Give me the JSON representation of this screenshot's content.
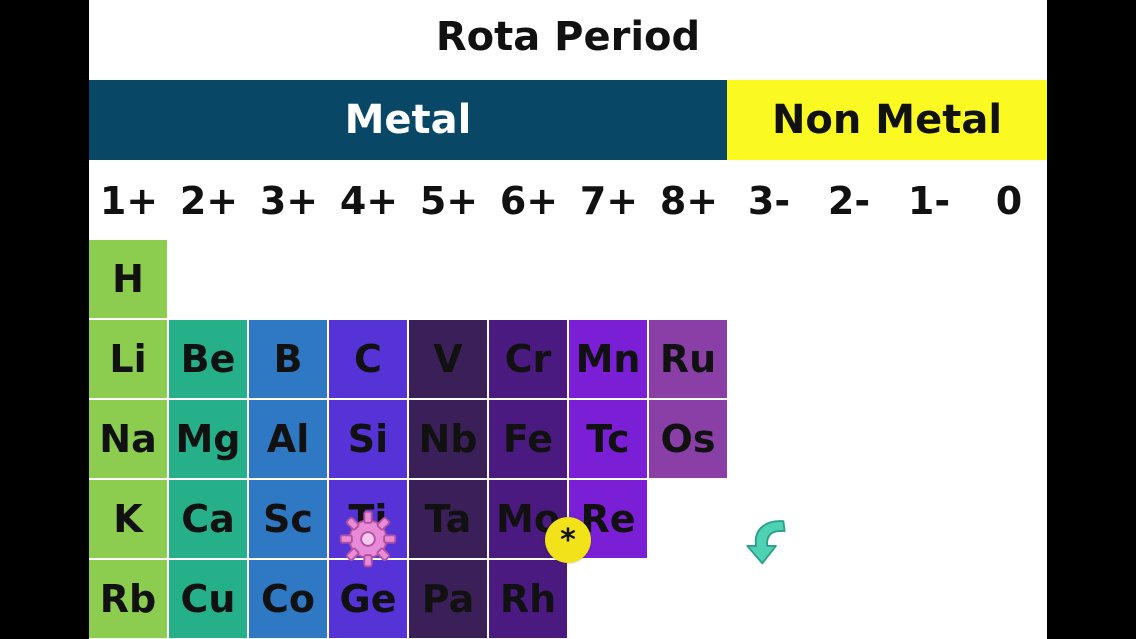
{
  "title": "Rota Period",
  "bands": {
    "metal": "Metal",
    "non_metal": "Non Metal"
  },
  "charges": [
    "1+",
    "2+",
    "3+",
    "4+",
    "5+",
    "6+",
    "7+",
    "8+",
    "3-",
    "2-",
    "1-",
    "0"
  ],
  "colors": {
    "metal_band": "#094766",
    "non_metal_band": "#fafa22",
    "col1": "#8ccc4f",
    "col2": "#25b08a",
    "col3": "#2e78c4",
    "col4": "#5633d6",
    "col5": "#3b1f58",
    "col6": "#4b1a80",
    "col7": "#7a1fd6",
    "col8": "#8a3fa6"
  },
  "grid": [
    [
      "H"
    ],
    [
      "Li",
      "Be",
      "B",
      "C",
      "V",
      "Cr",
      "Mn",
      "Ru"
    ],
    [
      "Na",
      "Mg",
      "Al",
      "Si",
      "Nb",
      "Fe",
      "Tc",
      "Os"
    ],
    [
      "K",
      "Ca",
      "Sc",
      "Ti",
      "Ta",
      "Mo",
      "Re"
    ],
    [
      "Rb",
      "Cu",
      "Co",
      "Ge",
      "Pa",
      "Rh"
    ]
  ],
  "icons": {
    "gear": "gear-icon",
    "star": "star-badge-icon",
    "back": "rotate-back-arrow-icon"
  },
  "star_symbol": "*"
}
